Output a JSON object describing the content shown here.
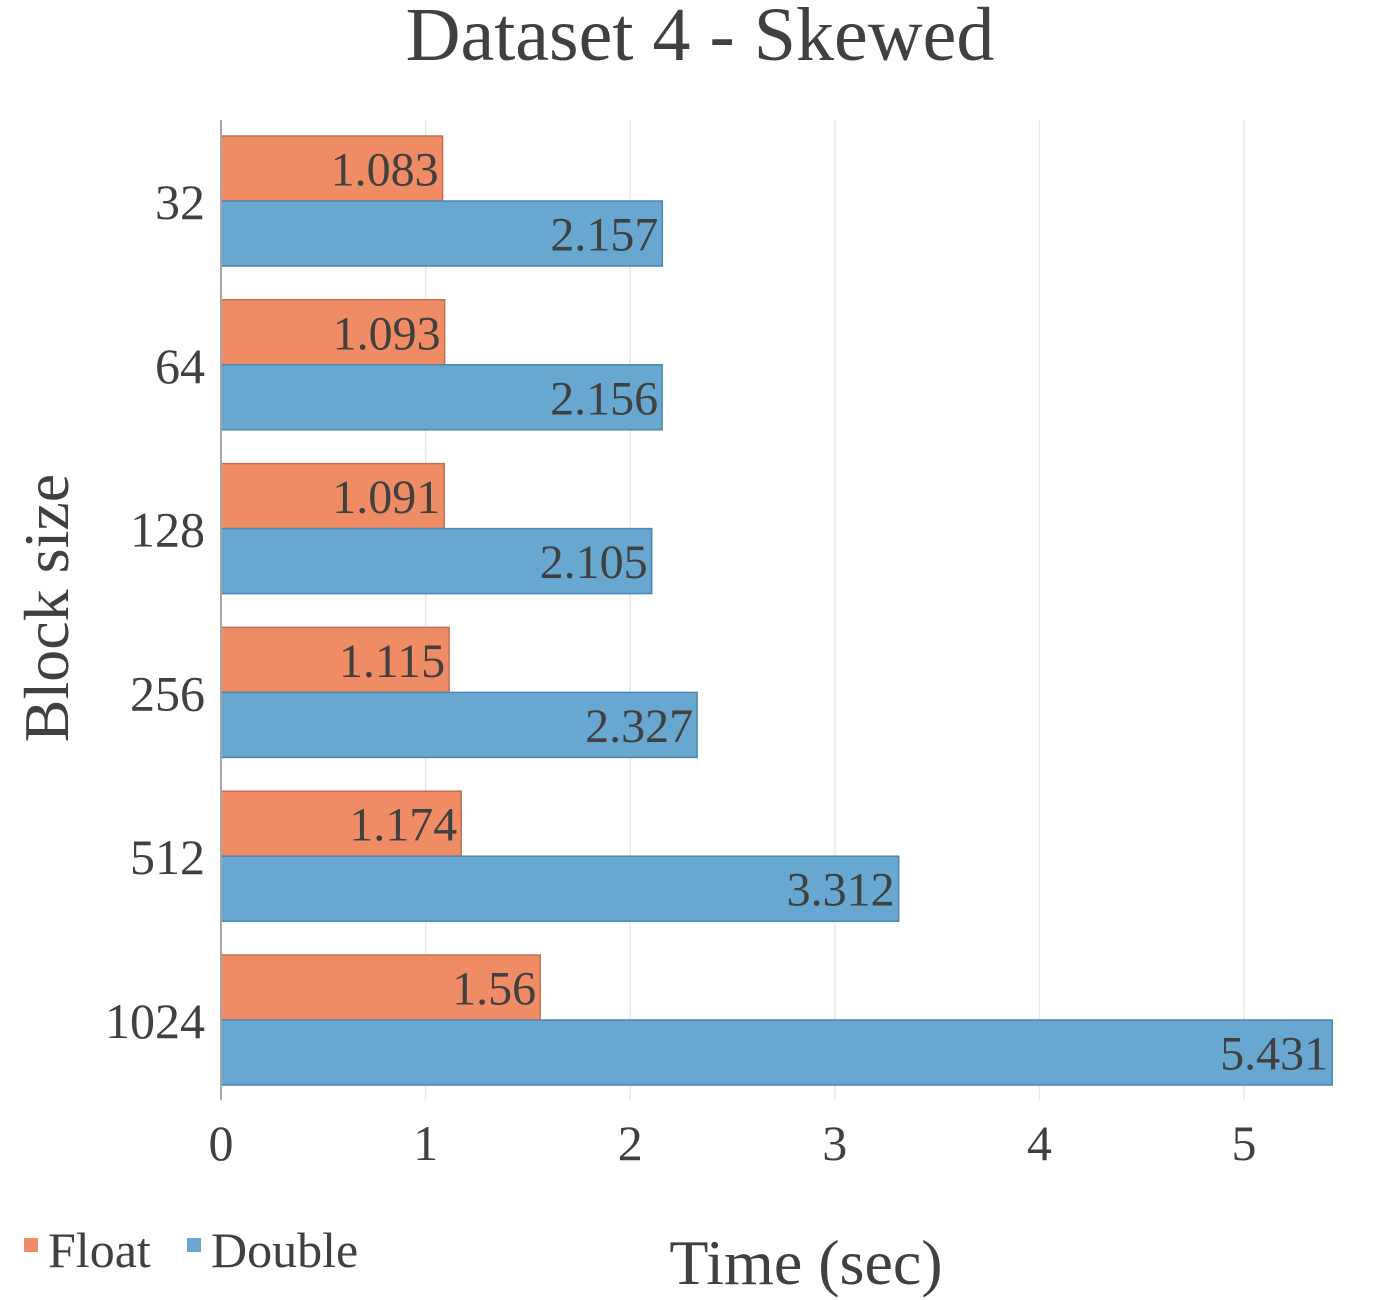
{
  "chart_data": {
    "type": "bar",
    "orientation": "horizontal",
    "title": "Dataset 4 - Skewed",
    "xlabel": "Time (sec)",
    "ylabel": "Block size",
    "categories": [
      "32",
      "64",
      "128",
      "256",
      "512",
      "1024"
    ],
    "series": [
      {
        "name": "Float",
        "color": "#F08C65",
        "values": [
          1.083,
          1.093,
          1.091,
          1.115,
          1.174,
          1.56
        ],
        "labels": [
          "1.083",
          "1.093",
          "1.091",
          "1.115",
          "1.174",
          "1.56"
        ]
      },
      {
        "name": "Double",
        "color": "#68A8D0",
        "values": [
          2.157,
          2.156,
          2.105,
          2.327,
          3.312,
          5.431
        ],
        "labels": [
          "2.157",
          "2.156",
          "2.105",
          "2.327",
          "3.312",
          "5.431"
        ]
      }
    ],
    "xlim": [
      0,
      5.5
    ],
    "xticks": [
      "0",
      "1",
      "2",
      "3",
      "4",
      "5"
    ],
    "grid": true,
    "legend_position": "bottom-left"
  }
}
